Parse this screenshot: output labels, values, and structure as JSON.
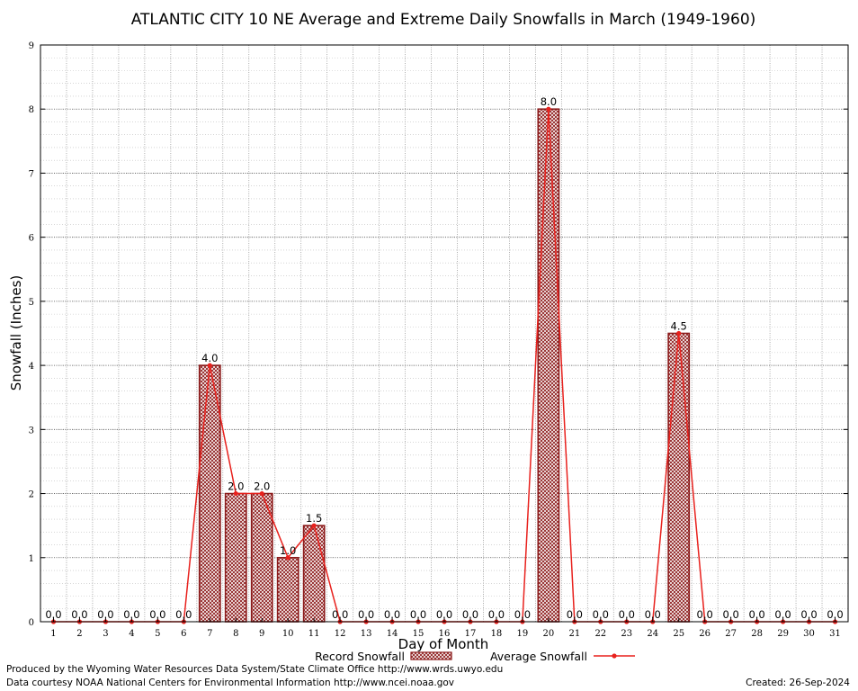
{
  "chart_data": {
    "type": "bar",
    "title": "ATLANTIC CITY 10 NE Average and Extreme Daily Snowfalls in March (1949-1960)",
    "xlabel": "Day of Month",
    "ylabel": "Snowfall (Inches)",
    "ylim": [
      0,
      9
    ],
    "yticks": [
      0,
      1,
      2,
      3,
      4,
      5,
      6,
      7,
      8,
      9
    ],
    "categories": [
      "1",
      "2",
      "3",
      "4",
      "5",
      "6",
      "7",
      "8",
      "9",
      "10",
      "11",
      "12",
      "13",
      "14",
      "15",
      "16",
      "17",
      "18",
      "19",
      "20",
      "21",
      "22",
      "23",
      "24",
      "25",
      "26",
      "27",
      "28",
      "29",
      "30",
      "31"
    ],
    "series": [
      {
        "name": "Record Snowfall",
        "kind": "bar",
        "color": "#8b1a1a",
        "values": [
          0,
          0,
          0,
          0,
          0,
          0,
          4.0,
          2.0,
          2.0,
          1.0,
          1.5,
          0,
          0,
          0,
          0,
          0,
          0,
          0,
          0,
          8.0,
          0,
          0,
          0,
          0,
          4.5,
          0,
          0,
          0,
          0,
          0,
          0
        ]
      },
      {
        "name": "Average Snowfall",
        "kind": "line",
        "color": "#e8211d",
        "values": [
          0,
          0,
          0,
          0,
          0,
          0,
          4.0,
          2.0,
          2.0,
          1.0,
          1.5,
          0,
          0,
          0,
          0,
          0,
          0,
          0,
          0,
          8.0,
          0,
          0,
          0,
          0,
          4.5,
          0,
          0,
          0,
          0,
          0,
          0
        ]
      }
    ],
    "data_labels": [
      "0.0",
      "0.0",
      "0.0",
      "0.0",
      "0.0",
      "0.0",
      "4.0",
      "2.0",
      "2.0",
      "1.0",
      "1.5",
      "0.0",
      "0.0",
      "0.0",
      "0.0",
      "0.0",
      "0.0",
      "0.0",
      "0.0",
      "8.0",
      "0.0",
      "0.0",
      "0.0",
      "0.0",
      "4.5",
      "0.0",
      "0.0",
      "0.0",
      "0.0",
      "0.0",
      "0.0"
    ],
    "grid": true,
    "legend": "bottom"
  },
  "footer": {
    "producer": "Produced by the Wyoming Water Resources Data System/State Climate Office http://www.wrds.uwyo.edu",
    "courtesy": "Data courtesy NOAA National Centers for Environmental Information http://www.ncei.noaa.gov",
    "created": "Created: 26-Sep-2024"
  }
}
